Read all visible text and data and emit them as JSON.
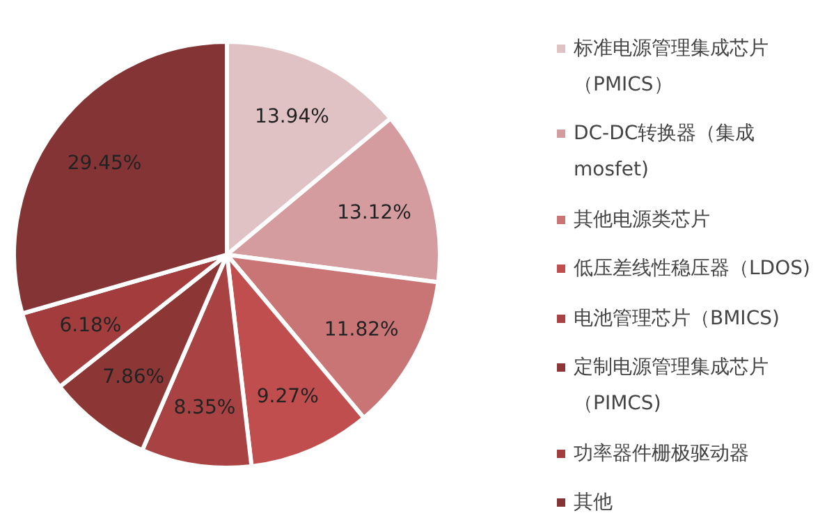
{
  "chart_data": {
    "type": "pie",
    "categories": [
      "标准电源管理集成芯片（PMICS）",
      "DC-DC转换器（集成mosfet)",
      "其他电源类芯片",
      "低压差线性稳压器（LDOS)",
      "电池管理芯片（BMICS)",
      "定制电源管理集成芯片（PIMCS)",
      "功率器件栅极驱动器",
      "其他"
    ],
    "values": [
      13.94,
      13.12,
      11.82,
      9.27,
      8.35,
      7.86,
      6.18,
      29.45
    ],
    "colors": [
      "#e0c2c5",
      "#d49c9f",
      "#c97475",
      "#c04e4e",
      "#a94242",
      "#8c3636",
      "#a33d3d",
      "#843434"
    ],
    "value_labels": [
      "13.94%",
      "13.12%",
      "11.82%",
      "9.27%",
      "8.35%",
      "7.86%",
      "6.18%",
      "29.45%"
    ],
    "legend": "right"
  }
}
